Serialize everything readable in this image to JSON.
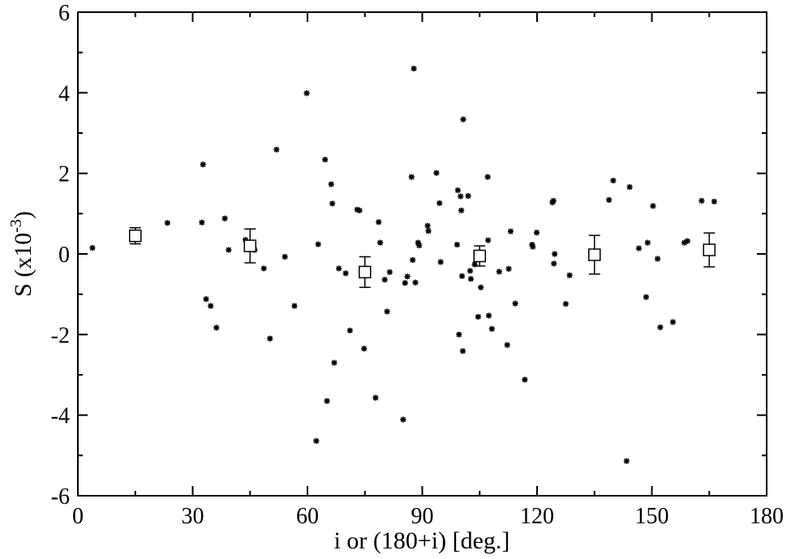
{
  "chart_data": {
    "type": "scatter",
    "title": "",
    "xlabel": "i or (180+i) [deg.]",
    "ylabel_main": "S (x10",
    "ylabel_exp": "-3",
    "ylabel_close": ")",
    "xlim": [
      0,
      180
    ],
    "ylim": [
      -6,
      6
    ],
    "xticks": [
      0,
      30,
      60,
      90,
      120,
      150,
      180
    ],
    "yticks": [
      -6,
      -4,
      -2,
      0,
      2,
      4,
      6
    ],
    "xtick_labels": [
      "0",
      "30",
      "60",
      "90",
      "120",
      "150",
      "180"
    ],
    "ytick_labels": [
      "-6",
      "-4",
      "-2",
      "0",
      "2",
      "4",
      "6"
    ],
    "grid": false,
    "legend": "none",
    "colors": {
      "points": "#000000",
      "axes": "#000000",
      "background": "#ffffff"
    },
    "series": [
      {
        "marker": "asterisk",
        "points": [
          [
            3.8,
            0.15
          ],
          [
            23.4,
            0.77
          ],
          [
            32.4,
            0.78
          ],
          [
            32.7,
            2.22
          ],
          [
            33.5,
            -1.12
          ],
          [
            34.7,
            -1.29
          ],
          [
            36.2,
            -1.83
          ],
          [
            38.4,
            0.88
          ],
          [
            39.4,
            0.1
          ],
          [
            43.8,
            0.35
          ],
          [
            46.2,
            0.1
          ],
          [
            48.6,
            -0.36
          ],
          [
            50.2,
            -2.1
          ],
          [
            51.9,
            2.59
          ],
          [
            54.1,
            -0.07
          ],
          [
            56.6,
            -1.29
          ],
          [
            59.8,
            3.99
          ],
          [
            62.3,
            -4.64
          ],
          [
            62.8,
            0.24
          ],
          [
            64.6,
            2.34
          ],
          [
            65.1,
            -3.65
          ],
          [
            66.2,
            1.73
          ],
          [
            66.5,
            1.25
          ],
          [
            67.0,
            -2.7
          ],
          [
            68.2,
            -0.36
          ],
          [
            70.0,
            -0.48
          ],
          [
            71.1,
            -1.9
          ],
          [
            73.0,
            1.1
          ],
          [
            73.6,
            1.08
          ],
          [
            74.8,
            -2.35
          ],
          [
            77.8,
            -3.57
          ],
          [
            78.6,
            0.79
          ],
          [
            79.0,
            0.28
          ],
          [
            80.2,
            -0.64
          ],
          [
            80.8,
            -1.43
          ],
          [
            81.5,
            -0.45
          ],
          [
            85.0,
            -4.11
          ],
          [
            85.5,
            -0.72
          ],
          [
            86.1,
            -0.56
          ],
          [
            87.2,
            1.91
          ],
          [
            87.5,
            -0.15
          ],
          [
            87.8,
            4.6
          ],
          [
            88.2,
            -0.71
          ],
          [
            88.9,
            0.28
          ],
          [
            89.2,
            0.21
          ],
          [
            91.4,
            0.7
          ],
          [
            91.6,
            0.57
          ],
          [
            93.7,
            2.01
          ],
          [
            94.5,
            1.26
          ],
          [
            94.8,
            -0.2
          ],
          [
            99.1,
            0.23
          ],
          [
            99.3,
            1.58
          ],
          [
            99.6,
            -2.0
          ],
          [
            100.0,
            1.43
          ],
          [
            100.2,
            1.08
          ],
          [
            100.4,
            -0.55
          ],
          [
            100.6,
            -2.41
          ],
          [
            100.7,
            3.34
          ],
          [
            102.0,
            1.44
          ],
          [
            102.5,
            -0.42
          ],
          [
            102.7,
            -0.62
          ],
          [
            103.7,
            -0.26
          ],
          [
            104.6,
            -1.56
          ],
          [
            105.3,
            -0.83
          ],
          [
            107.1,
            1.91
          ],
          [
            107.2,
            0.34
          ],
          [
            107.4,
            -1.53
          ],
          [
            108.2,
            -1.86
          ],
          [
            110.1,
            -0.44
          ],
          [
            112.2,
            -2.26
          ],
          [
            112.6,
            -0.37
          ],
          [
            113.1,
            0.56
          ],
          [
            114.3,
            -1.23
          ],
          [
            116.8,
            -3.12
          ],
          [
            118.7,
            0.23
          ],
          [
            118.9,
            0.18
          ],
          [
            119.9,
            0.53
          ],
          [
            124.0,
            1.28
          ],
          [
            124.3,
            1.32
          ],
          [
            124.4,
            -0.24
          ],
          [
            124.6,
            0.0
          ],
          [
            127.5,
            -1.24
          ],
          [
            128.5,
            -0.53
          ],
          [
            138.8,
            1.34
          ],
          [
            139.9,
            1.82
          ],
          [
            143.4,
            -5.14
          ],
          [
            144.2,
            1.66
          ],
          [
            146.6,
            0.14
          ],
          [
            148.5,
            -1.07
          ],
          [
            148.9,
            0.28
          ],
          [
            150.3,
            1.19
          ],
          [
            151.5,
            -0.12
          ],
          [
            152.2,
            -1.82
          ],
          [
            155.5,
            -1.69
          ],
          [
            158.5,
            0.28
          ],
          [
            159.3,
            0.32
          ],
          [
            163.0,
            1.32
          ],
          [
            166.3,
            1.3
          ]
        ]
      },
      {
        "marker": "square-errorbar",
        "points": [
          {
            "x": 15,
            "y": 0.45,
            "err": 0.2
          },
          {
            "x": 45,
            "y": 0.2,
            "err": 0.42
          },
          {
            "x": 75,
            "y": -0.45,
            "err": 0.38
          },
          {
            "x": 105,
            "y": -0.05,
            "err": 0.25
          },
          {
            "x": 135,
            "y": -0.02,
            "err": 0.48
          },
          {
            "x": 165,
            "y": 0.1,
            "err": 0.42
          }
        ]
      }
    ]
  }
}
